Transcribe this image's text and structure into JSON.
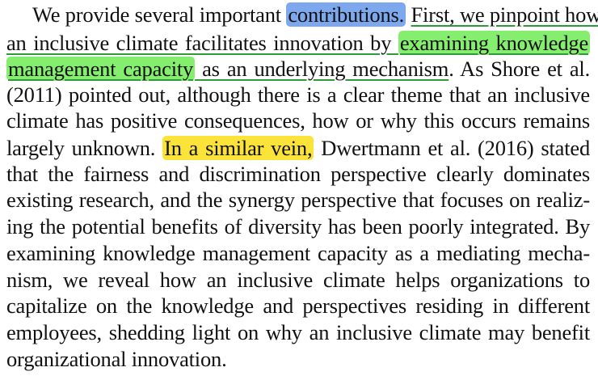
{
  "lines": [
    {
      "a": "We provide several important ",
      "b": "contributions.",
      "c": " ",
      "d": "First, we pinpoint how"
    },
    {
      "a": "an inclusive climate facilitates innovation by ",
      "b": "examining knowledge"
    },
    {
      "a": "management capacity",
      "b": " as an underlying mechanism",
      "c": ". As Shore et al."
    },
    {
      "a": "(2011) pointed out, although there is a clear theme that an inclusive"
    },
    {
      "a": "climate has positive consequences, how or why this occurs remains"
    },
    {
      "a": "largely unknown. ",
      "b": "In a similar vein,",
      "c": " Dwertmann et al. (2016) stated"
    },
    {
      "a": "that the fairness and discrimination perspective clearly dominates"
    },
    {
      "a": "existing research, and the synergy perspective that focuses on realiz-"
    },
    {
      "a": "ing the potential benefits of diversity has been poorly integrated. By"
    },
    {
      "a": "examining knowledge management capacity as a mediating mecha-"
    },
    {
      "a": "nism, we reveal how an inclusive climate helps organizations to"
    },
    {
      "a": "capitalize on the knowledge and perspectives residing in different"
    },
    {
      "a": "employees, shedding light on why an inclusive climate may benefit"
    },
    {
      "a": "organizational innovation."
    }
  ],
  "highlight_colors": {
    "blue": "#7ea8ee",
    "green": "#86ee6f",
    "yellow": "#fbe33a",
    "underline": "#2f9a3a"
  }
}
